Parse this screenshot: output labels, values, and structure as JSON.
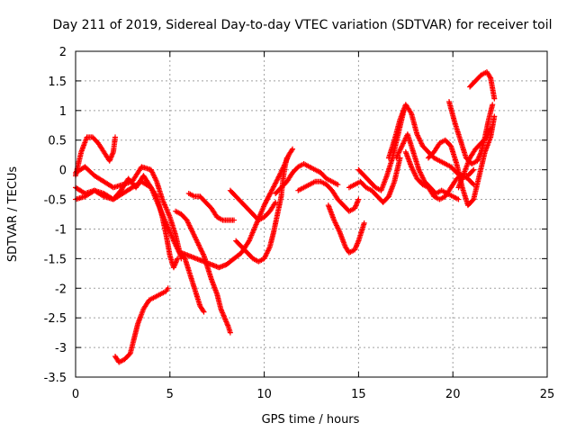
{
  "chart_data": {
    "type": "scatter",
    "title": "Day 211 of 2019, Sidereal Day-to-day VTEC variation (SDTVAR) for receiver toil",
    "xlabel": "GPS time / hours",
    "ylabel": "SDTVAR / TECUs",
    "xlim": [
      0,
      25
    ],
    "ylim": [
      -3.5,
      2
    ],
    "xticks": [
      0,
      5,
      10,
      15,
      20,
      25
    ],
    "yticks": [
      -3.5,
      -3,
      -2.5,
      -2,
      -1.5,
      -1,
      -0.5,
      0,
      0.5,
      1,
      1.5,
      2
    ],
    "xtick_labels": [
      "0",
      "5",
      "10",
      "15",
      "20",
      "25"
    ],
    "ytick_labels": [
      "-3.5",
      "-3",
      "-2.5",
      "-2",
      "-1.5",
      "-1",
      "-0.5",
      "0",
      "0.5",
      "1",
      "1.5",
      "2"
    ],
    "grid": true,
    "marker": "+",
    "marker_color": "#ff0000",
    "series": [
      {
        "x": [
          0.0,
          0.3,
          0.6,
          0.9,
          1.2,
          1.5,
          1.8,
          2.0,
          2.1
        ],
        "y": [
          -0.1,
          0.3,
          0.55,
          0.55,
          0.45,
          0.3,
          0.15,
          0.3,
          0.55
        ]
      },
      {
        "x": [
          0.0,
          0.5,
          1.0,
          1.5,
          2.0,
          2.5,
          3.0,
          3.5,
          4.0,
          4.3,
          4.6,
          5.0,
          5.3,
          5.6
        ],
        "y": [
          -0.05,
          0.05,
          -0.1,
          -0.2,
          -0.3,
          -0.25,
          -0.2,
          0.05,
          0.0,
          -0.2,
          -0.5,
          -0.8,
          -1.1,
          -1.5
        ]
      },
      {
        "x": [
          0.0,
          0.5,
          1.0,
          1.5,
          2.0,
          2.4,
          2.8,
          3.2,
          3.6,
          4.0,
          4.4,
          4.8,
          5.2,
          5.5,
          5.8,
          6.0,
          6.3,
          6.6,
          6.8
        ],
        "y": [
          -0.3,
          -0.4,
          -0.35,
          -0.45,
          -0.5,
          -0.35,
          -0.15,
          -0.3,
          -0.1,
          -0.3,
          -0.6,
          -0.9,
          -1.2,
          -1.4,
          -1.5,
          -1.7,
          -2.0,
          -2.3,
          -2.4
        ]
      },
      {
        "x": [
          0.0,
          0.5,
          1.0,
          1.5,
          2.0,
          2.5,
          3.0,
          3.5,
          4.0,
          4.3,
          4.6,
          4.8,
          5.0,
          5.2,
          5.4
        ],
        "y": [
          -0.5,
          -0.45,
          -0.35,
          -0.4,
          -0.5,
          -0.4,
          -0.3,
          -0.2,
          -0.3,
          -0.45,
          -0.8,
          -1.1,
          -1.45,
          -1.65,
          -1.5
        ]
      },
      {
        "x": [
          2.1,
          2.3,
          2.6,
          2.9,
          3.1,
          3.3,
          3.6,
          3.9,
          4.2,
          4.5,
          4.8,
          4.9
        ],
        "y": [
          -3.15,
          -3.25,
          -3.2,
          -3.1,
          -2.85,
          -2.6,
          -2.35,
          -2.2,
          -2.15,
          -2.1,
          -2.05,
          -2.0
        ]
      },
      {
        "x": [
          5.3,
          5.6,
          5.9,
          6.2,
          6.5,
          6.8,
          7.0,
          7.2,
          7.5,
          7.7,
          7.9,
          8.1,
          8.2
        ],
        "y": [
          -0.7,
          -0.75,
          -0.85,
          -1.05,
          -1.25,
          -1.45,
          -1.65,
          -1.85,
          -2.1,
          -2.35,
          -2.5,
          -2.65,
          -2.75
        ]
      },
      {
        "x": [
          6.0,
          6.3,
          6.6,
          6.9,
          7.2,
          7.5,
          7.8,
          8.1,
          8.4
        ],
        "y": [
          -0.4,
          -0.45,
          -0.45,
          -0.55,
          -0.65,
          -0.8,
          -0.85,
          -0.85,
          -0.85
        ]
      },
      {
        "x": [
          5.6,
          6.0,
          6.4,
          6.8,
          7.2,
          7.6,
          8.0,
          8.4,
          8.8,
          9.2,
          9.6,
          10.0,
          10.4,
          10.8,
          11.1,
          11.3,
          11.5
        ],
        "y": [
          -1.4,
          -1.45,
          -1.5,
          -1.55,
          -1.6,
          -1.65,
          -1.6,
          -1.5,
          -1.4,
          -1.2,
          -0.9,
          -0.6,
          -0.35,
          -0.1,
          0.1,
          0.25,
          0.35
        ]
      },
      {
        "x": [
          8.2,
          8.5,
          8.8,
          9.1,
          9.4,
          9.7,
          10.0,
          10.3,
          10.6
        ],
        "y": [
          -0.35,
          -0.45,
          -0.55,
          -0.65,
          -0.75,
          -0.85,
          -0.8,
          -0.7,
          -0.55
        ]
      },
      {
        "x": [
          8.5,
          8.8,
          9.1,
          9.4,
          9.7,
          10.0,
          10.3,
          10.5,
          10.7,
          10.9,
          11.0,
          11.1,
          11.2
        ],
        "y": [
          -1.2,
          -1.3,
          -1.4,
          -1.5,
          -1.55,
          -1.5,
          -1.3,
          -1.05,
          -0.75,
          -0.45,
          -0.15,
          0.05,
          0.2
        ]
      },
      {
        "x": [
          10.6,
          10.9,
          11.2,
          11.5,
          11.8,
          12.1,
          12.4,
          12.7,
          13.0,
          13.3,
          13.6,
          13.9
        ],
        "y": [
          -0.4,
          -0.3,
          -0.2,
          -0.05,
          0.05,
          0.1,
          0.05,
          0.0,
          -0.05,
          -0.15,
          -0.2,
          -0.25
        ]
      },
      {
        "x": [
          11.8,
          12.1,
          12.4,
          12.7,
          13.0,
          13.3,
          13.6,
          13.9,
          14.2,
          14.5,
          14.8,
          15.0
        ],
        "y": [
          -0.35,
          -0.3,
          -0.25,
          -0.2,
          -0.2,
          -0.25,
          -0.35,
          -0.5,
          -0.6,
          -0.7,
          -0.65,
          -0.5
        ]
      },
      {
        "x": [
          13.4,
          13.7,
          14.0,
          14.3,
          14.5,
          14.8,
          15.0,
          15.3
        ],
        "y": [
          -0.6,
          -0.85,
          -1.05,
          -1.3,
          -1.4,
          -1.35,
          -1.2,
          -0.9
        ]
      },
      {
        "x": [
          14.5,
          14.8,
          15.1,
          15.4,
          15.7,
          16.0,
          16.3,
          16.6,
          16.9,
          17.2
        ],
        "y": [
          -0.3,
          -0.25,
          -0.2,
          -0.3,
          -0.35,
          -0.45,
          -0.55,
          -0.45,
          -0.2,
          0.2
        ]
      },
      {
        "x": [
          15.0,
          15.3,
          15.6,
          15.9,
          16.2,
          16.5,
          16.8,
          17.1,
          17.4
        ],
        "y": [
          0.0,
          -0.1,
          -0.2,
          -0.3,
          -0.35,
          -0.1,
          0.2,
          0.6,
          1.0
        ]
      },
      {
        "x": [
          16.6,
          16.9,
          17.2,
          17.5,
          17.8,
          18.1,
          18.4,
          18.7,
          19.0,
          19.3,
          19.6,
          19.9,
          20.2,
          20.5,
          20.8,
          21.1
        ],
        "y": [
          0.2,
          0.5,
          0.85,
          1.1,
          0.95,
          0.6,
          0.4,
          0.3,
          0.2,
          0.15,
          0.1,
          0.05,
          -0.05,
          -0.1,
          -0.15,
          -0.25
        ]
      },
      {
        "x": [
          17.0,
          17.3,
          17.6,
          17.9,
          18.2,
          18.5,
          18.8,
          19.1,
          19.4,
          19.7,
          20.0,
          20.3
        ],
        "y": [
          0.2,
          0.4,
          0.6,
          0.3,
          0.0,
          -0.2,
          -0.3,
          -0.4,
          -0.35,
          -0.4,
          -0.45,
          -0.5
        ]
      },
      {
        "x": [
          17.5,
          17.8,
          18.1,
          18.4,
          18.7,
          19.0,
          19.3,
          19.6,
          19.9,
          20.2,
          20.5,
          20.8,
          21.1
        ],
        "y": [
          0.3,
          0.05,
          -0.15,
          -0.25,
          -0.3,
          -0.45,
          -0.5,
          -0.45,
          -0.3,
          -0.15,
          -0.1,
          -0.1,
          0.0
        ]
      },
      {
        "x": [
          18.7,
          19.0,
          19.3,
          19.6,
          19.9,
          20.2,
          20.5,
          20.8,
          21.1,
          21.4,
          21.7,
          22.0,
          22.2
        ],
        "y": [
          0.2,
          0.3,
          0.45,
          0.5,
          0.4,
          0.1,
          -0.3,
          -0.6,
          -0.5,
          -0.1,
          0.3,
          0.55,
          0.9
        ]
      },
      {
        "x": [
          19.8,
          20.1,
          20.4,
          20.7,
          21.0,
          21.3,
          21.5,
          21.7,
          21.9,
          22.1
        ],
        "y": [
          1.15,
          0.8,
          0.5,
          0.2,
          0.1,
          0.15,
          0.3,
          0.55,
          0.85,
          1.1
        ]
      },
      {
        "x": [
          20.9,
          21.2,
          21.5,
          21.8,
          22.0,
          22.2
        ],
        "y": [
          1.4,
          1.5,
          1.6,
          1.65,
          1.55,
          1.2
        ]
      },
      {
        "x": [
          20.3,
          20.6,
          20.9,
          21.2,
          21.5,
          21.8,
          22.0
        ],
        "y": [
          -0.3,
          -0.05,
          0.2,
          0.35,
          0.45,
          0.55,
          0.7
        ]
      }
    ]
  }
}
